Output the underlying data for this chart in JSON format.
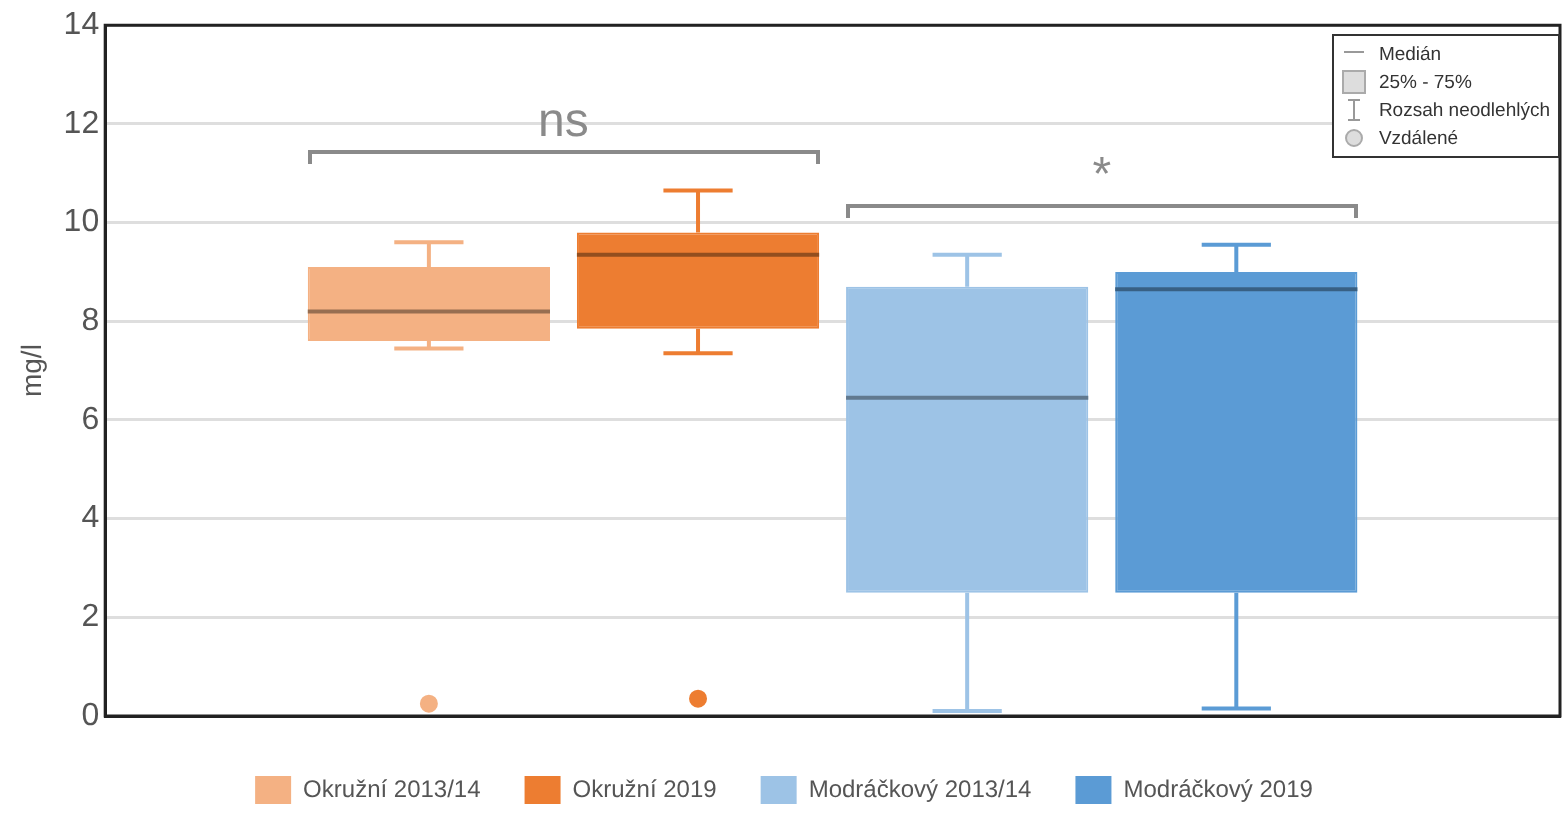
{
  "chart_data": {
    "type": "box",
    "categories": [
      null
    ],
    "ylabel": "mg/l",
    "ylim": [
      0,
      14
    ],
    "yticks": [
      0,
      2,
      4,
      6,
      8,
      10,
      12,
      14
    ],
    "grid": "y",
    "legend": "bottom",
    "tick_labels": "y",
    "series": [
      {
        "name": "Okružní 2013/14",
        "color": "#f4b183",
        "boxes": [
          {
            "low": 7.45,
            "q1": 7.6,
            "median": 8.2,
            "q3": 9.1,
            "high": 9.6,
            "outliers": [
              0.25
            ]
          }
        ]
      },
      {
        "name": "Okružní 2019",
        "color": "#ed7d31",
        "boxes": [
          {
            "low": 7.35,
            "q1": 7.85,
            "median": 9.35,
            "q3": 9.8,
            "high": 10.65,
            "outliers": [
              0.35
            ]
          }
        ]
      },
      {
        "name": "Modráčkový 2013/14",
        "color": "#9dc3e6",
        "boxes": [
          {
            "low": 0.1,
            "q1": 2.5,
            "median": 6.45,
            "q3": 8.7,
            "high": 9.35
          }
        ]
      },
      {
        "name": "Modráčkový 2019",
        "color": "#5b9bd5",
        "boxes": [
          {
            "low": 0.15,
            "q1": 2.5,
            "median": 8.65,
            "q3": 9.0,
            "high": 9.55
          }
        ]
      }
    ],
    "annotations": [
      "ns",
      "*",
      "Medián",
      "25% - 75%",
      "Rozsah neodlehlých",
      "Vzdálené"
    ]
  }
}
